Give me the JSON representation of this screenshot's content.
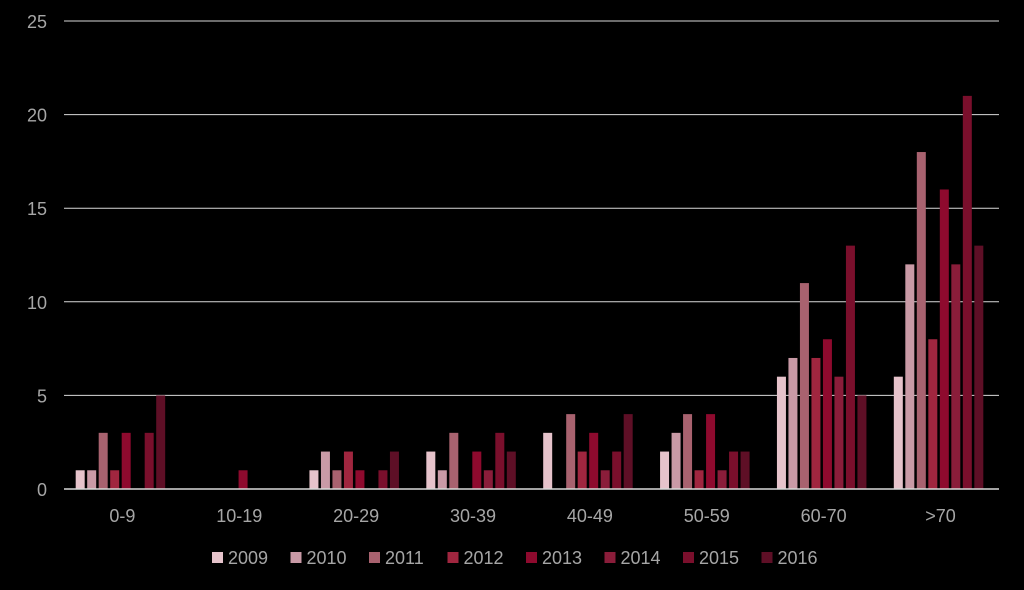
{
  "colors": {
    "background": "#000000",
    "grid": "#d9d9d9",
    "axis": "#d9d9d9",
    "tick_text": "#a6a6a6",
    "legend_text": "#a6a6a6"
  },
  "chart_data": {
    "type": "bar",
    "title": "",
    "xlabel": "",
    "ylabel": "",
    "ylim": [
      0,
      25
    ],
    "yticks": [
      0,
      5,
      10,
      15,
      20,
      25
    ],
    "grid": true,
    "legend_position": "bottom",
    "categories": [
      "0-9",
      "10-19",
      "20-29",
      "30-39",
      "40-49",
      "50-59",
      "60-70",
      ">70"
    ],
    "series": [
      {
        "name": "2009",
        "color": "#e6c3cb",
        "values": [
          1,
          0,
          1,
          2,
          3,
          2,
          6,
          6
        ]
      },
      {
        "name": "2010",
        "color": "#c99aa6",
        "values": [
          1,
          0,
          2,
          1,
          0,
          3,
          7,
          12
        ]
      },
      {
        "name": "2011",
        "color": "#a8626f",
        "values": [
          3,
          0,
          1,
          3,
          4,
          4,
          11,
          18
        ]
      },
      {
        "name": "2012",
        "color": "#a0263f",
        "values": [
          1,
          0,
          2,
          0,
          2,
          1,
          7,
          8
        ]
      },
      {
        "name": "2013",
        "color": "#8e0a2e",
        "values": [
          3,
          1,
          1,
          2,
          3,
          4,
          8,
          16
        ]
      },
      {
        "name": "2014",
        "color": "#8a1d3a",
        "values": [
          0,
          0,
          0,
          1,
          1,
          1,
          6,
          12
        ]
      },
      {
        "name": "2015",
        "color": "#7a0f2c",
        "values": [
          3,
          0,
          1,
          3,
          2,
          2,
          13,
          21
        ]
      },
      {
        "name": "2016",
        "color": "#5e0f26",
        "values": [
          5,
          0,
          2,
          2,
          4,
          2,
          5,
          13
        ]
      }
    ],
    "extra_bar_2015_first_group_note": ""
  }
}
